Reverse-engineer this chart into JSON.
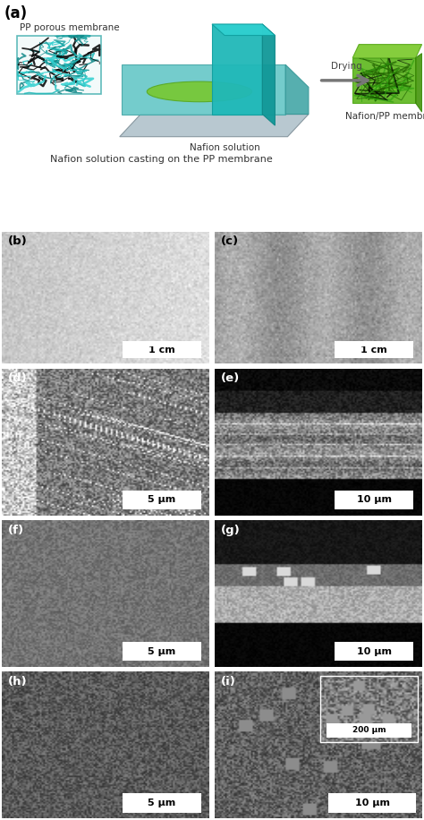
{
  "fig_width": 4.74,
  "fig_height": 9.16,
  "background_color": "#ffffff",
  "panel_labels": [
    "(a)",
    "(b)",
    "(c)",
    "(d)",
    "(e)",
    "(f)",
    "(g)",
    "(h)",
    "(i)"
  ],
  "panel_a_texts": {
    "pp_label": "PP porous membrane",
    "nafion_label": "Nafion solution",
    "drying_label": "Drying",
    "nafion_pp_label": "Nafion/PP membrane",
    "caption": "Nafion solution casting on the PP membrane"
  },
  "scale_bars": {
    "b": "1 cm",
    "c": "1 cm",
    "d": "5 μm",
    "e": "10 μm",
    "f": "5 μm",
    "g": "10 μm",
    "h": "5 μm",
    "i_main": "10 μm",
    "i_inset": "200 μm"
  },
  "colors": {
    "teal_light": "#40c8c8",
    "teal_mid": "#20a0a0",
    "teal_dark": "#107878",
    "green_bright": "#50c820",
    "green_mid": "#38a010",
    "green_dark": "#206000",
    "gray_tray": "#a0b8c0",
    "gray_tray2": "#8090a0",
    "white": "#ffffff",
    "arrow_gray": "#888888"
  }
}
